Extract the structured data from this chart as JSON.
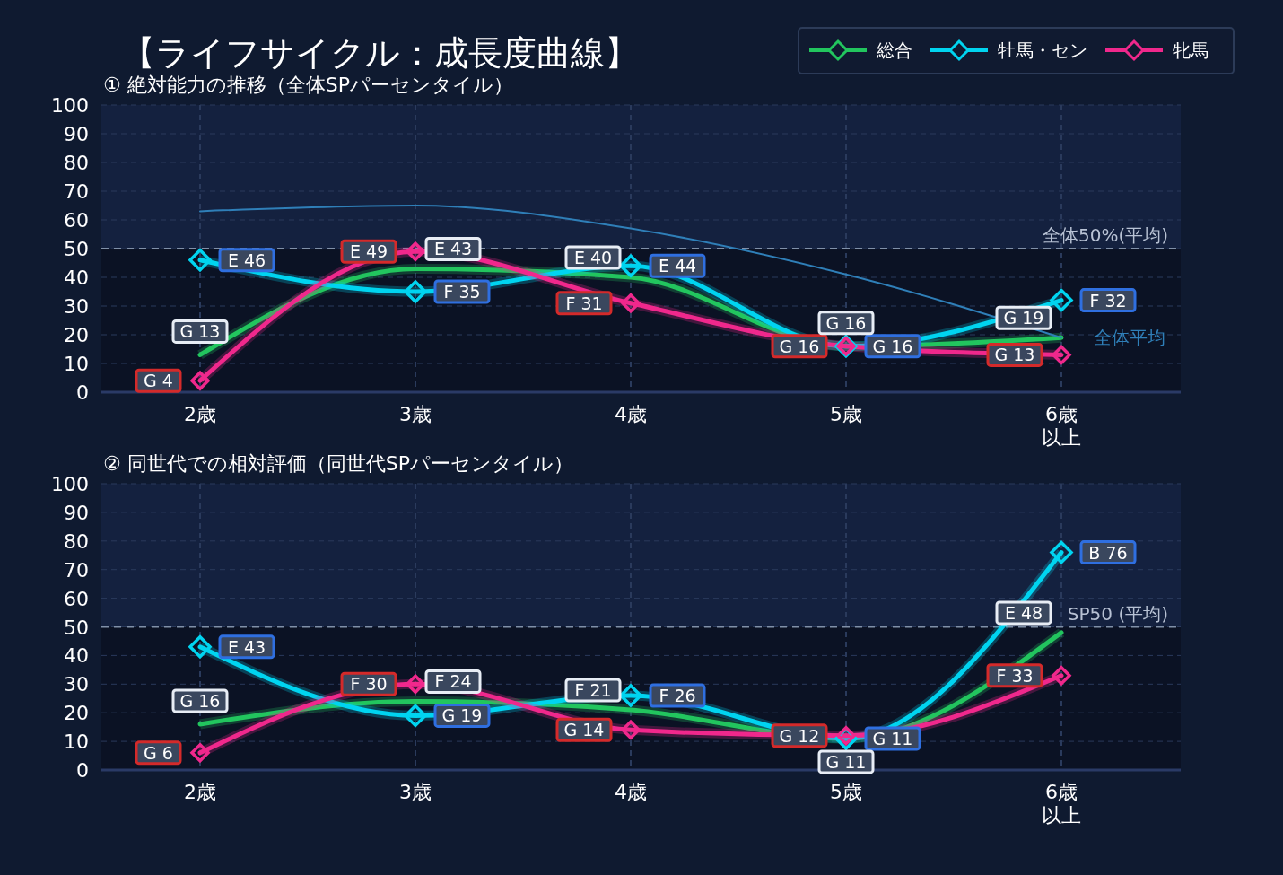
{
  "chart_data": [
    {
      "type": "line",
      "title": "【ライフサイクル：成長度曲線】",
      "subtitle": "① 絶対能力の推移（全体SPパーセンタイル）",
      "categories": [
        "2歳",
        "3歳",
        "4歳",
        "5歳",
        "6歳以上"
      ],
      "ylim": [
        0,
        100
      ],
      "yticks": [
        0,
        10,
        20,
        30,
        40,
        50,
        60,
        70,
        80,
        90,
        100
      ],
      "grid": true,
      "legend": "top right",
      "line_style": "solid",
      "series": [
        {
          "name": "総合",
          "color": "#22c55e",
          "values": [
            13,
            43,
            40,
            16,
            19
          ],
          "marker": "none",
          "value_labels": [
            "G 13",
            "E 43",
            "E 40",
            "G 16",
            "G 19"
          ]
        },
        {
          "name": "牡馬・セン",
          "color": "#00d4f0",
          "values": [
            46,
            35,
            44,
            16,
            32
          ],
          "marker": "diamond",
          "value_labels": [
            "E 46",
            "F 35",
            "E 44",
            "G 16",
            "F 32"
          ]
        },
        {
          "name": "牝馬",
          "color": "#f0288c",
          "values": [
            4,
            49,
            31,
            16,
            13
          ],
          "marker": "diamond",
          "value_labels": [
            "G 4",
            "E 49",
            "F 31",
            "G 16",
            "G 13"
          ]
        },
        {
          "name": "全体平均",
          "color": "#2f7fb8",
          "values": [
            63,
            65,
            57,
            41,
            19
          ],
          "marker": "none"
        }
      ],
      "bands": [
        {
          "axis": "y",
          "from": 50,
          "to": 100,
          "color": "#14213f"
        }
      ],
      "ref_lines": [
        {
          "axis": "y",
          "value": 50,
          "label": "全体50%(平均)",
          "line_style": "dashed"
        }
      ]
    },
    {
      "type": "line",
      "title": "② 同世代での相対評価（同世代SPパーセンタイル）",
      "categories": [
        "2歳",
        "3歳",
        "4歳",
        "5歳",
        "6歳以上"
      ],
      "ylim": [
        0,
        100
      ],
      "yticks": [
        0,
        10,
        20,
        30,
        40,
        50,
        60,
        70,
        80,
        90,
        100
      ],
      "grid": true,
      "line_style": "solid",
      "series": [
        {
          "color": "#22c55e",
          "values": [
            16,
            24,
            21,
            11,
            48
          ],
          "marker": "none",
          "value_labels": [
            "G 16",
            "F 24",
            "F 21",
            "G 11",
            "E 48"
          ]
        },
        {
          "color": "#00d4f0",
          "values": [
            43,
            19,
            26,
            11,
            76
          ],
          "marker": "diamond",
          "value_labels": [
            "E 43",
            "G 19",
            "F 26",
            "G 11",
            "B 76"
          ]
        },
        {
          "color": "#f0288c",
          "values": [
            6,
            30,
            14,
            12,
            33
          ],
          "marker": "diamond",
          "value_labels": [
            "G 6",
            "F 30",
            "G 14",
            "G 12",
            "F 33"
          ]
        }
      ],
      "bands": [
        {
          "axis": "y",
          "from": 50,
          "to": 100,
          "color": "#14213f"
        }
      ],
      "ref_lines": [
        {
          "axis": "y",
          "value": 50,
          "label": "SP50 (平均)",
          "line_style": "dashed"
        }
      ]
    }
  ]
}
